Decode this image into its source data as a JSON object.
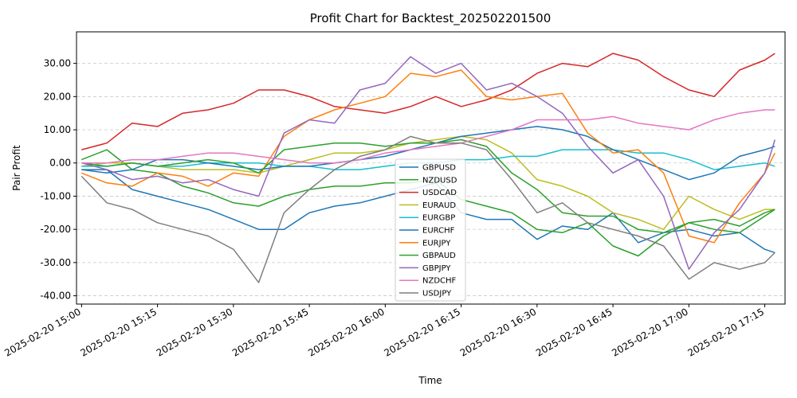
{
  "chart_data": {
    "type": "line",
    "title": "Profit Chart for Backtest_202502201500",
    "xlabel": "Time",
    "ylabel": "Pair Profit",
    "xlim": [
      "2025-02-20 14:59",
      "2025-02-20 17:19"
    ],
    "ylim": [
      -42.5,
      39.5
    ],
    "x_ticks": [
      "2025-02-20 15:00",
      "2025-02-20 15:15",
      "2025-02-20 15:30",
      "2025-02-20 15:45",
      "2025-02-20 16:00",
      "2025-02-20 16:15",
      "2025-02-20 16:30",
      "2025-02-20 16:45",
      "2025-02-20 17:00",
      "2025-02-20 17:15"
    ],
    "y_ticks": [
      "30.00",
      "20.00",
      "10.00",
      "0.00",
      "-10.00",
      "-20.00",
      "-30.00",
      "-40.00"
    ],
    "y_tick_values": [
      30,
      20,
      10,
      0,
      -10,
      -20,
      -30,
      -40
    ],
    "grid": "y-dashed",
    "legend_position": "bottom-center",
    "x": [
      "15:00",
      "15:05",
      "15:10",
      "15:15",
      "15:20",
      "15:25",
      "15:30",
      "15:35",
      "15:40",
      "15:45",
      "15:50",
      "15:55",
      "16:00",
      "16:05",
      "16:10",
      "16:15",
      "16:20",
      "16:25",
      "16:30",
      "16:35",
      "16:40",
      "16:45",
      "16:50",
      "16:55",
      "17:00",
      "17:05",
      "17:10",
      "17:15",
      "17:17"
    ],
    "series": [
      {
        "name": "GBPUSD",
        "color": "#1f77b4",
        "values": [
          -2,
          -2,
          -8,
          -10,
          -12,
          -14,
          -17,
          -20,
          -20,
          -15,
          -13,
          -12,
          -10,
          -8,
          -6,
          -15,
          -17,
          -17,
          -23,
          -19,
          -20,
          -15,
          -24,
          -21,
          -20,
          -22,
          -21,
          -26,
          -27
        ]
      },
      {
        "name": "NZDUSD",
        "color": "#2ca02c",
        "values": [
          1,
          4,
          -2,
          -3,
          -7,
          -9,
          -12,
          -13,
          -10,
          -8,
          -7,
          -7,
          -6,
          -6,
          -5,
          -11,
          -13,
          -15,
          -20,
          -21,
          -18,
          -25,
          -28,
          -22,
          -18,
          -20,
          -21,
          -16,
          -14
        ]
      },
      {
        "name": "USDCAD",
        "color": "#d62728",
        "values": [
          4,
          6,
          12,
          11,
          15,
          16,
          18,
          22,
          22,
          20,
          17,
          16,
          15,
          17,
          20,
          17,
          19,
          22,
          27,
          30,
          29,
          33,
          31,
          26,
          22,
          20,
          28,
          31,
          33
        ]
      },
      {
        "name": "EURAUD",
        "color": "#bcbd22",
        "values": [
          -1,
          0,
          0,
          -1,
          -2,
          -2,
          -2,
          -3,
          -1,
          1,
          3,
          3,
          4,
          6,
          7,
          8,
          7,
          3,
          -5,
          -7,
          -10,
          -15,
          -17,
          -20,
          -10,
          -14,
          -17,
          -14,
          -14
        ]
      },
      {
        "name": "EURGBP",
        "color": "#17becf",
        "values": [
          -1,
          -1,
          0,
          -1,
          -1,
          0,
          0,
          0,
          -1,
          -1,
          -2,
          -2,
          -1,
          0,
          0,
          1,
          1,
          2,
          2,
          4,
          4,
          4,
          3,
          3,
          1,
          -2,
          -1,
          0,
          -1
        ]
      },
      {
        "name": "EURCHF",
        "color": "#1f77b4",
        "values": [
          -2,
          -3,
          -2,
          1,
          1,
          0,
          -1,
          -2,
          -1,
          -1,
          0,
          1,
          2,
          4,
          6,
          8,
          9,
          10,
          11,
          10,
          8,
          4,
          1,
          -2,
          -5,
          -3,
          2,
          4,
          5
        ]
      },
      {
        "name": "EURJPY",
        "color": "#ff7f0e",
        "values": [
          -3,
          -6,
          -7,
          -3,
          -4,
          -7,
          -3,
          -4,
          8,
          13,
          16,
          18,
          20,
          27,
          26,
          28,
          20,
          19,
          20,
          21,
          9,
          3,
          4,
          -3,
          -22,
          -24,
          -12,
          -3,
          3
        ]
      },
      {
        "name": "GBPAUD",
        "color": "#2ca02c",
        "values": [
          0,
          -1,
          0,
          -1,
          0,
          1,
          0,
          -3,
          4,
          5,
          6,
          6,
          5,
          6,
          6,
          7,
          5,
          -3,
          -8,
          -15,
          -16,
          -16,
          -20,
          -21,
          -18,
          -17,
          -19,
          -15,
          -14
        ]
      },
      {
        "name": "GBPJPY",
        "color": "#9467bd",
        "values": [
          0,
          -2,
          -5,
          -4,
          -6,
          -5,
          -8,
          -10,
          9,
          13,
          12,
          22,
          24,
          32,
          27,
          30,
          22,
          24,
          20,
          15,
          5,
          -3,
          1,
          -10,
          -32,
          -21,
          -14,
          -3,
          7
        ]
      },
      {
        "name": "NZDCHF",
        "color": "#e377c2",
        "values": [
          0,
          0,
          1,
          1,
          2,
          3,
          3,
          2,
          1,
          0,
          0,
          1,
          3,
          4,
          5,
          6,
          8,
          10,
          13,
          13,
          13,
          14,
          12,
          11,
          10,
          13,
          15,
          16,
          16
        ]
      },
      {
        "name": "USDJPY",
        "color": "#7f7f7f",
        "values": [
          -4,
          -12,
          -14,
          -18,
          -20,
          -22,
          -26,
          -36,
          -15,
          -8,
          -2,
          2,
          4,
          8,
          6,
          6,
          4,
          -5,
          -15,
          -12,
          -18,
          -20,
          -22,
          -25,
          -35,
          -30,
          -32,
          -30,
          -27
        ]
      }
    ]
  }
}
